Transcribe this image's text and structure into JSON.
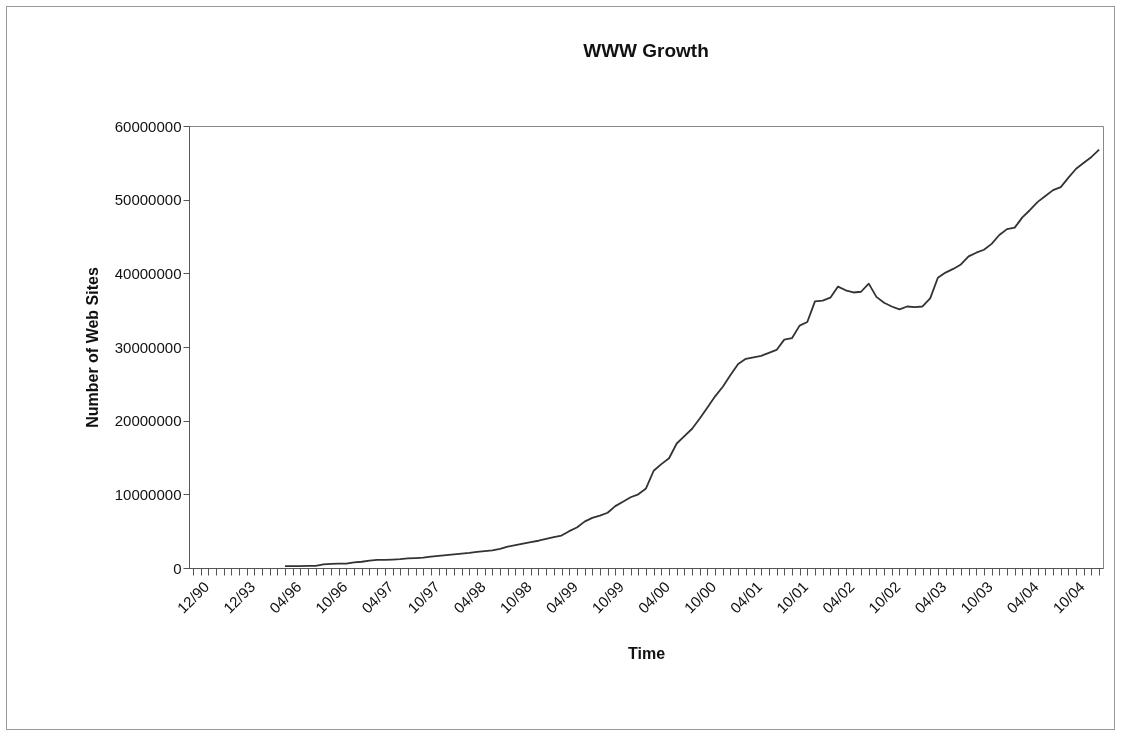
{
  "chart_data": {
    "type": "line",
    "title": "WWW Growth",
    "xlabel": "Time",
    "ylabel": "Number of Web Sites",
    "color": "#333333",
    "categories": [
      "12/90",
      null,
      null,
      null,
      null,
      null,
      "12/93",
      null,
      null,
      null,
      null,
      null,
      "04/96",
      null,
      null,
      null,
      null,
      null,
      "10/96",
      null,
      null,
      null,
      null,
      null,
      "04/97",
      null,
      null,
      null,
      null,
      null,
      "10/97",
      null,
      null,
      null,
      null,
      null,
      "04/98",
      null,
      null,
      null,
      null,
      null,
      "10/98",
      null,
      null,
      null,
      null,
      null,
      "04/99",
      null,
      null,
      null,
      null,
      null,
      "10/99",
      null,
      null,
      null,
      null,
      null,
      "04/00",
      null,
      null,
      null,
      null,
      null,
      "10/00",
      null,
      null,
      null,
      null,
      null,
      "04/01",
      null,
      null,
      null,
      null,
      null,
      "10/01",
      null,
      null,
      null,
      null,
      null,
      "04/02",
      null,
      null,
      null,
      null,
      null,
      "10/02",
      null,
      null,
      null,
      null,
      null,
      "04/03",
      null,
      null,
      null,
      null,
      null,
      "10/03",
      null,
      null,
      null,
      null,
      null,
      "04/04",
      null,
      null,
      null,
      null,
      null,
      "10/04",
      null,
      null,
      null,
      null
    ],
    "values": [
      null,
      null,
      null,
      null,
      null,
      null,
      null,
      null,
      null,
      null,
      null,
      null,
      250000,
      250000,
      250000,
      300000,
      300000,
      500000,
      550000,
      600000,
      600000,
      750000,
      850000,
      1000000,
      1100000,
      1100000,
      1150000,
      1200000,
      1300000,
      1350000,
      1400000,
      1550000,
      1650000,
      1750000,
      1850000,
      1950000,
      2050000,
      2200000,
      2300000,
      2400000,
      2600000,
      2900000,
      3100000,
      3300000,
      3500000,
      3700000,
      3950000,
      4200000,
      4400000,
      5000000,
      5500000,
      6300000,
      6800000,
      7100000,
      7500000,
      8400000,
      9000000,
      9600000,
      10000000,
      10800000,
      13200000,
      14100000,
      14900000,
      16900000,
      17900000,
      18900000,
      20300000,
      21800000,
      23300000,
      24600000,
      26200000,
      27700000,
      28400000,
      28600000,
      28800000,
      29200000,
      29600000,
      31000000,
      31200000,
      32900000,
      33400000,
      36200000,
      36300000,
      36700000,
      38200000,
      37700000,
      37400000,
      37500000,
      38600000,
      36800000,
      36000000,
      35500000,
      35100000,
      35500000,
      35400000,
      35500000,
      36600000,
      39400000,
      40100000,
      40600000,
      41200000,
      42300000,
      42800000,
      43200000,
      44000000,
      45200000,
      46000000,
      46200000,
      47600000,
      48600000,
      49700000,
      50500000,
      51300000,
      51700000,
      53000000,
      54200000,
      55000000,
      55800000,
      56800000
    ],
    "ylim": [
      0,
      60000000
    ],
    "yticks": [
      0,
      10000000,
      20000000,
      30000000,
      40000000,
      50000000,
      60000000
    ]
  }
}
